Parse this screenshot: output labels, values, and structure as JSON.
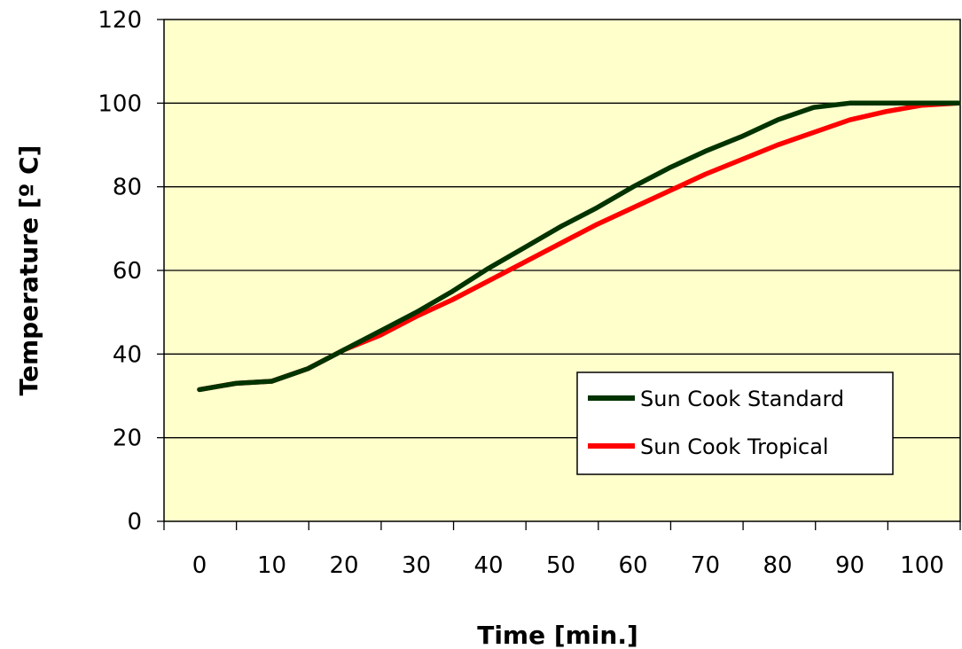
{
  "chart_data": {
    "type": "line",
    "title": "",
    "xlabel": "Time [min.]",
    "ylabel": "Temperature [º C]",
    "x_tick_labels": [
      "0",
      "10",
      "20",
      "30",
      "40",
      "50",
      "60",
      "70",
      "80",
      "90",
      "100"
    ],
    "y_tick_labels": [
      "0",
      "20",
      "40",
      "60",
      "80",
      "100",
      "120"
    ],
    "ylim": [
      0,
      120
    ],
    "grid": "horizontal",
    "legend_position": "lower-right",
    "colors": {
      "plot_background": "#FFFFCC",
      "grid": "#000000",
      "standard": "#003300",
      "tropical": "#FF0000"
    },
    "x": [
      0,
      5,
      10,
      15,
      20,
      25,
      30,
      35,
      40,
      45,
      50,
      55,
      60,
      65,
      70,
      75,
      80,
      85,
      90,
      95,
      100,
      105
    ],
    "series": [
      {
        "name": "Sun Cook Standard",
        "values": [
          31.5,
          33,
          33.5,
          36.5,
          41,
          45.5,
          50,
          55,
          60.5,
          65.5,
          70.5,
          75,
          80,
          84.5,
          88.5,
          92,
          96,
          99,
          100,
          100,
          100,
          100
        ]
      },
      {
        "name": "Sun Cook Tropical",
        "values": [
          31.5,
          33,
          33.5,
          36.5,
          41,
          44.5,
          49,
          53,
          57.5,
          62,
          66.5,
          71,
          75,
          79,
          83,
          86.5,
          90,
          93,
          96,
          98,
          99.5,
          100
        ]
      }
    ]
  }
}
